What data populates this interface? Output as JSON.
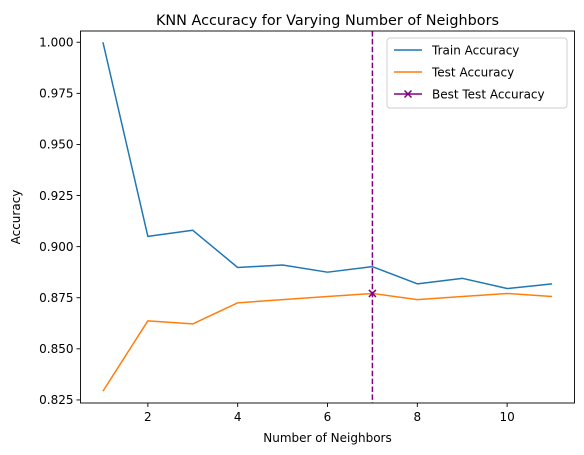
{
  "chart_data": {
    "type": "line",
    "title": "KNN Accuracy for Varying Number of Neighbors",
    "xlabel": "Number of Neighbors",
    "ylabel": "Accuracy",
    "xlim": [
      0.5,
      11.5
    ],
    "ylim": [
      0.8235,
      1.0055
    ],
    "xticks": [
      2,
      4,
      6,
      8,
      10
    ],
    "xtick_labels": [
      "2",
      "4",
      "6",
      "8",
      "10"
    ],
    "yticks": [
      0.825,
      0.85,
      0.875,
      0.9,
      0.925,
      0.95,
      0.975,
      1.0
    ],
    "ytick_labels": [
      "0.825",
      "0.850",
      "0.875",
      "0.900",
      "0.925",
      "0.950",
      "0.975",
      "1.000"
    ],
    "x": [
      1,
      2,
      3,
      4,
      5,
      6,
      7,
      8,
      9,
      10,
      11
    ],
    "series": [
      {
        "name": "Train Accuracy",
        "color": "#1f77b4",
        "values": [
          1.0,
          0.905,
          0.908,
          0.8898,
          0.891,
          0.8875,
          0.8902,
          0.8818,
          0.8845,
          0.8795,
          0.8818
        ]
      },
      {
        "name": "Test Accuracy",
        "color": "#ff7f0e",
        "values": [
          0.8293,
          0.8637,
          0.8622,
          0.8725,
          0.8741,
          0.8756,
          0.8771,
          0.8741,
          0.8756,
          0.8771,
          0.8756
        ]
      }
    ],
    "best": {
      "name": "Best Test Accuracy",
      "color": "#800080",
      "x": 7,
      "y": 0.8771,
      "marker": "x",
      "vline_style": "dashed"
    },
    "grid": false,
    "legend_position": "top-right"
  }
}
